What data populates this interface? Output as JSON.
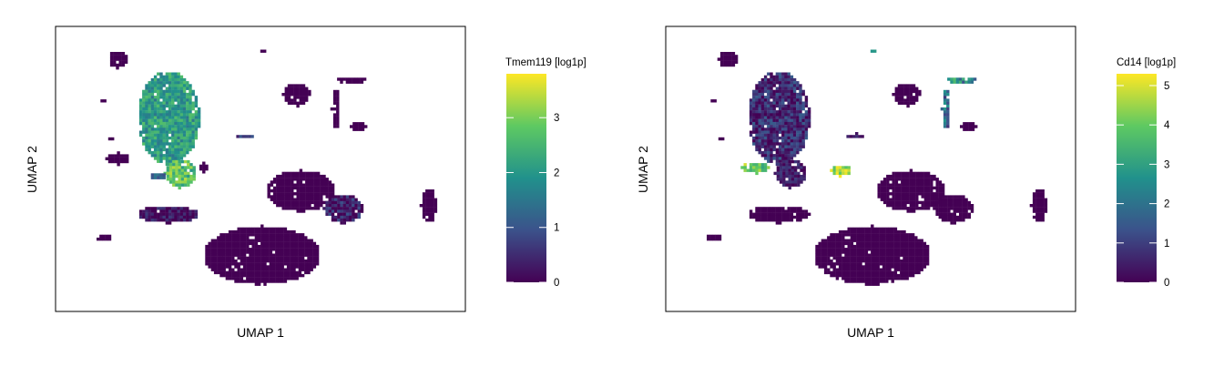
{
  "chart_data": [
    {
      "type": "scatter",
      "xlabel": "UMAP 1",
      "ylabel": "UMAP 2",
      "legend_title": "Tmem119 [log1p]",
      "colorbar": {
        "min": 0,
        "max": 3.8,
        "ticks": [
          "0",
          "1",
          "2",
          "3"
        ],
        "tick_values": [
          0,
          1,
          2,
          3
        ]
      },
      "colormap": [
        "#440154",
        "#3b528b",
        "#21918c",
        "#5ec962",
        "#fde725"
      ],
      "clusters": [
        {
          "cx": 2.6,
          "cy": 6.3,
          "rx": 0.8,
          "ry": 1.6,
          "value": 2.1,
          "spread": 0.6
        },
        {
          "cx": 2.9,
          "cy": 4.4,
          "rx": 0.4,
          "ry": 0.5,
          "value": 2.7,
          "spread": 0.7
        },
        {
          "cx": 2.3,
          "cy": 4.3,
          "rx": 0.2,
          "ry": 0.15,
          "value": 1.2,
          "spread": 0.3
        },
        {
          "cx": 1.3,
          "cy": 8.3,
          "rx": 0.25,
          "ry": 0.3,
          "value": 0,
          "spread": 0
        },
        {
          "cx": 1.3,
          "cy": 4.9,
          "rx": 0.3,
          "ry": 0.2,
          "value": 0,
          "spread": 0
        },
        {
          "cx": 1.1,
          "cy": 5.6,
          "rx": 0.1,
          "ry": 0.08,
          "value": 0,
          "spread": 0
        },
        {
          "cx": 0.9,
          "cy": 6.9,
          "rx": 0.1,
          "ry": 0.08,
          "value": 0,
          "spread": 0
        },
        {
          "cx": 3.5,
          "cy": 4.6,
          "rx": 0.15,
          "ry": 0.15,
          "value": 0,
          "spread": 0
        },
        {
          "cx": 4.6,
          "cy": 5.7,
          "rx": 0.3,
          "ry": 0.06,
          "value": 0.8,
          "spread": 0.5
        },
        {
          "cx": 5.9,
          "cy": 7.1,
          "rx": 0.35,
          "ry": 0.4,
          "value": 0,
          "spread": 0
        },
        {
          "cx": 5.0,
          "cy": 8.6,
          "rx": 0.08,
          "ry": 0.08,
          "value": 0,
          "spread": 0
        },
        {
          "cx": 7.3,
          "cy": 7.6,
          "rx": 0.4,
          "ry": 0.12,
          "value": 0,
          "spread": 0
        },
        {
          "cx": 6.9,
          "cy": 6.6,
          "rx": 0.1,
          "ry": 0.7,
          "value": 0,
          "spread": 0
        },
        {
          "cx": 7.5,
          "cy": 6.0,
          "rx": 0.2,
          "ry": 0.2,
          "value": 0,
          "spread": 0
        },
        {
          "cx": 6.0,
          "cy": 3.8,
          "rx": 0.9,
          "ry": 0.7,
          "value": 0,
          "spread": 0
        },
        {
          "cx": 7.1,
          "cy": 3.2,
          "rx": 0.5,
          "ry": 0.5,
          "value": 0.2,
          "spread": 0.8
        },
        {
          "cx": 2.6,
          "cy": 3.0,
          "rx": 0.8,
          "ry": 0.3,
          "value": 0.1,
          "spread": 0.6
        },
        {
          "cx": 0.9,
          "cy": 2.2,
          "rx": 0.2,
          "ry": 0.15,
          "value": 0,
          "spread": 0
        },
        {
          "cx": 5.0,
          "cy": 1.6,
          "rx": 1.5,
          "ry": 1.0,
          "value": 0,
          "spread": 0
        },
        {
          "cx": 9.3,
          "cy": 3.3,
          "rx": 0.2,
          "ry": 0.6,
          "value": 0,
          "spread": 0
        },
        {
          "cx": 0.3,
          "cy": 4.0,
          "rx": 0.06,
          "ry": 0.04,
          "value": 0,
          "spread": 0
        }
      ]
    },
    {
      "type": "scatter",
      "xlabel": "UMAP 1",
      "ylabel": "UMAP 2",
      "legend_title": "Cd14 [log1p]",
      "colorbar": {
        "min": 0,
        "max": 5.3,
        "ticks": [
          "0",
          "1",
          "2",
          "3",
          "4",
          "5"
        ],
        "tick_values": [
          0,
          1,
          2,
          3,
          4,
          5
        ]
      },
      "colormap": [
        "#440154",
        "#3b528b",
        "#21918c",
        "#5ec962",
        "#fde725"
      ],
      "clusters": [
        {
          "cx": 2.6,
          "cy": 6.3,
          "rx": 0.8,
          "ry": 1.6,
          "value": 0.7,
          "spread": 0.9
        },
        {
          "cx": 2.9,
          "cy": 4.4,
          "rx": 0.4,
          "ry": 0.5,
          "value": 0.4,
          "spread": 0.6
        },
        {
          "cx": 4.2,
          "cy": 4.5,
          "rx": 0.25,
          "ry": 0.2,
          "value": 4.5,
          "spread": 0.8
        },
        {
          "cx": 2.0,
          "cy": 4.6,
          "rx": 0.35,
          "ry": 0.2,
          "value": 4.0,
          "spread": 1.0
        },
        {
          "cx": 1.3,
          "cy": 8.3,
          "rx": 0.25,
          "ry": 0.3,
          "value": 0,
          "spread": 0
        },
        {
          "cx": 1.1,
          "cy": 5.6,
          "rx": 0.1,
          "ry": 0.08,
          "value": 0,
          "spread": 0
        },
        {
          "cx": 0.9,
          "cy": 6.9,
          "rx": 0.1,
          "ry": 0.08,
          "value": 0,
          "spread": 0
        },
        {
          "cx": 4.6,
          "cy": 5.7,
          "rx": 0.3,
          "ry": 0.06,
          "value": 0.4,
          "spread": 0.4
        },
        {
          "cx": 5.9,
          "cy": 7.1,
          "rx": 0.35,
          "ry": 0.4,
          "value": 0,
          "spread": 0
        },
        {
          "cx": 5.0,
          "cy": 8.6,
          "rx": 0.08,
          "ry": 0.08,
          "value": 2.8,
          "spread": 0.4
        },
        {
          "cx": 7.3,
          "cy": 7.6,
          "rx": 0.4,
          "ry": 0.12,
          "value": 2.5,
          "spread": 1.2
        },
        {
          "cx": 6.9,
          "cy": 6.6,
          "rx": 0.1,
          "ry": 0.7,
          "value": 1.8,
          "spread": 1.0
        },
        {
          "cx": 7.5,
          "cy": 6.0,
          "rx": 0.2,
          "ry": 0.2,
          "value": 0,
          "spread": 0
        },
        {
          "cx": 6.0,
          "cy": 3.8,
          "rx": 0.9,
          "ry": 0.7,
          "value": 0,
          "spread": 0
        },
        {
          "cx": 7.1,
          "cy": 3.2,
          "rx": 0.5,
          "ry": 0.5,
          "value": 0,
          "spread": 0
        },
        {
          "cx": 2.6,
          "cy": 3.0,
          "rx": 0.8,
          "ry": 0.3,
          "value": 0,
          "spread": 0
        },
        {
          "cx": 0.9,
          "cy": 2.2,
          "rx": 0.2,
          "ry": 0.15,
          "value": 0,
          "spread": 0
        },
        {
          "cx": 5.0,
          "cy": 1.6,
          "rx": 1.5,
          "ry": 1.0,
          "value": 0,
          "spread": 0
        },
        {
          "cx": 9.3,
          "cy": 3.3,
          "rx": 0.2,
          "ry": 0.6,
          "value": 0,
          "spread": 0
        },
        {
          "cx": 0.3,
          "cy": 4.0,
          "rx": 0.06,
          "ry": 0.04,
          "value": 0,
          "spread": 0
        }
      ]
    }
  ]
}
